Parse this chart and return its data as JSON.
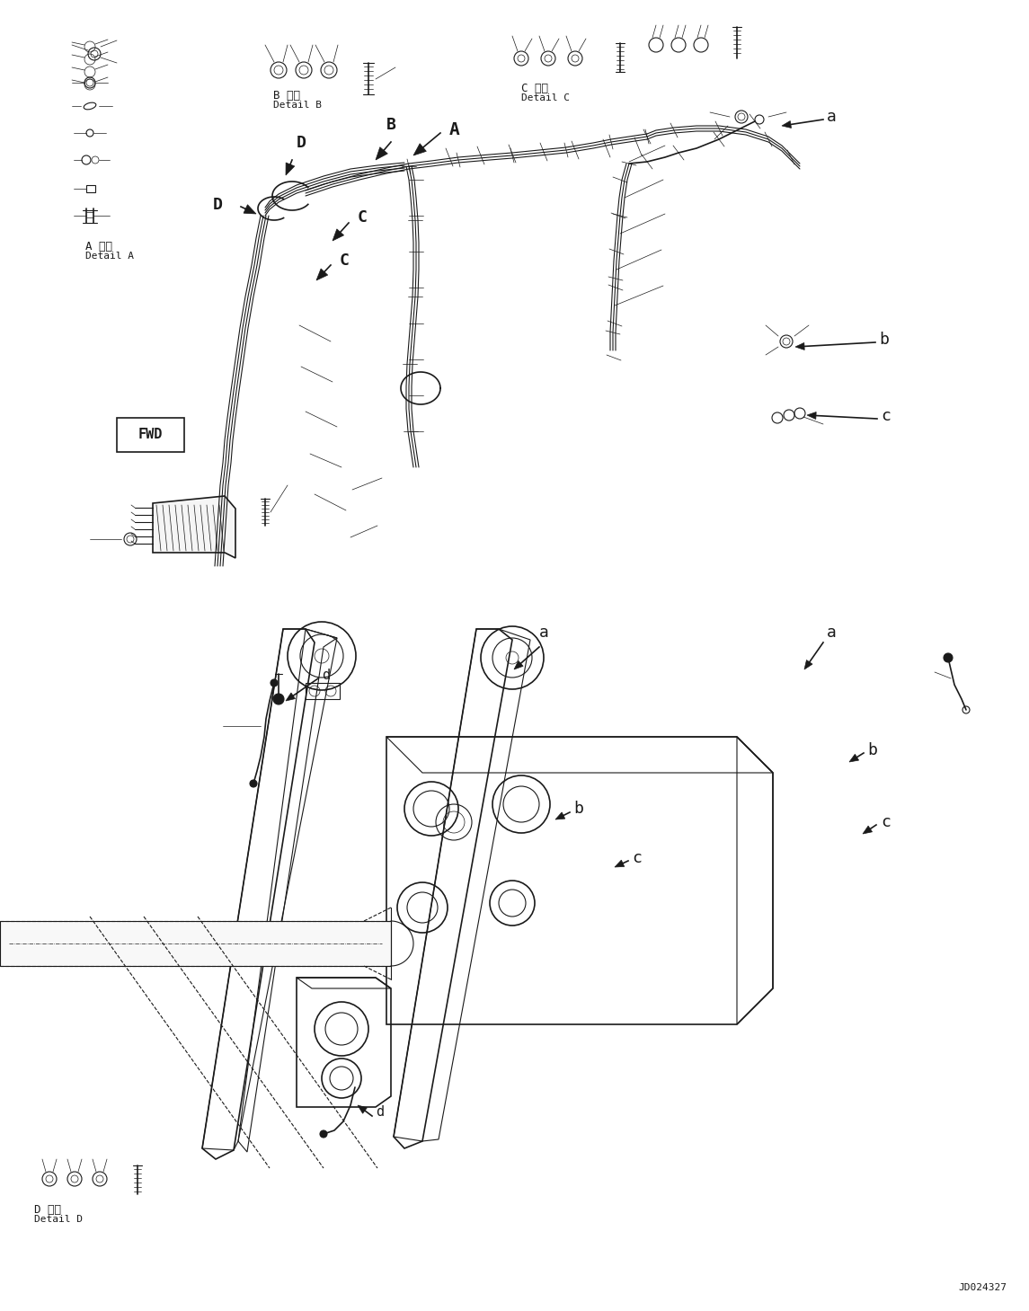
{
  "background_color": "#ffffff",
  "line_color": "#1a1a1a",
  "fig_width": 11.45,
  "fig_height": 14.59,
  "dpi": 100,
  "watermark": "JD024327",
  "labels": {
    "A_jp": "A 詳細",
    "A_en": "Detail A",
    "B_jp": "B 詳細",
    "B_en": "Detail B",
    "C_jp": "C 詳細",
    "C_en": "Detail C",
    "D_jp": "D 詳細",
    "D_en": "Detail D"
  }
}
